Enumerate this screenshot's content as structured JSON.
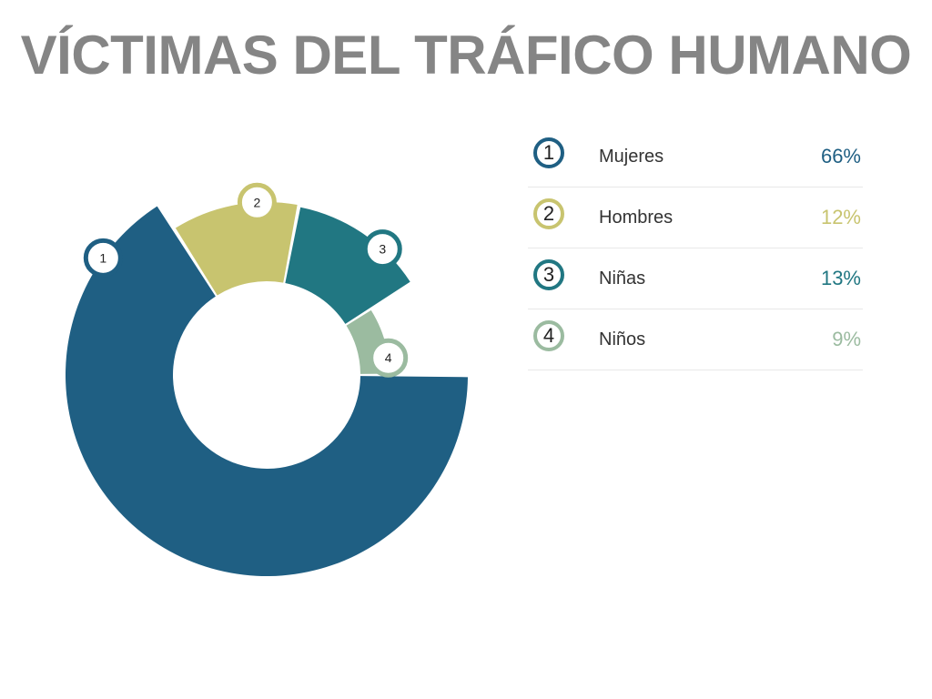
{
  "page": {
    "title": "VÍCTIMAS DEL TRÁFICO HUMANO"
  },
  "chart_data": {
    "type": "pie",
    "variant": "donut",
    "title": "VÍCTIMAS DEL TRÁFICO HUMANO",
    "categories": [
      "Mujeres",
      "Hombres",
      "Niñas",
      "Niños"
    ],
    "values": [
      66,
      12,
      13,
      9
    ],
    "value_labels": [
      "66%",
      "12%",
      "13%",
      "9%"
    ],
    "slice_numbers": [
      "1",
      "2",
      "3",
      "4"
    ],
    "colors": [
      "#1f5f83",
      "#c8c46f",
      "#217782",
      "#9bbba0"
    ],
    "legend_placement": "right"
  }
}
